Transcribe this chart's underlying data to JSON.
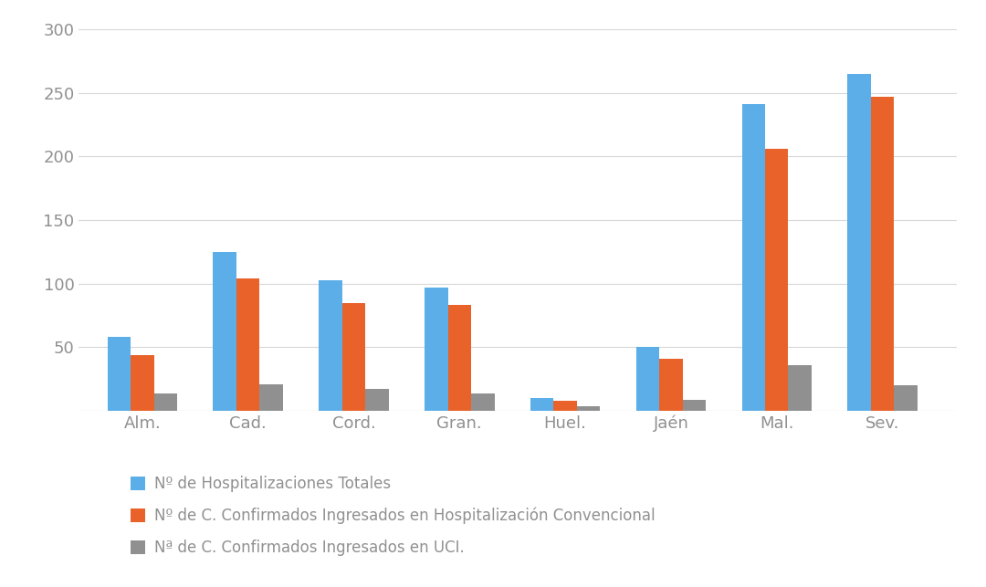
{
  "categories": [
    "Alm.",
    "Cad.",
    "Cord.",
    "Gran.",
    "Huel.",
    "Jaén",
    "Mal.",
    "Sev."
  ],
  "series": {
    "hospitalizaciones_totales": [
      58,
      125,
      103,
      97,
      10,
      50,
      241,
      265
    ],
    "confirmados_convencional": [
      44,
      104,
      85,
      83,
      8,
      41,
      206,
      247
    ],
    "confirmados_uci": [
      14,
      21,
      17,
      14,
      4,
      9,
      36,
      20
    ]
  },
  "colors": {
    "hospitalizaciones_totales": "#5BAEE8",
    "confirmados_convencional": "#E8622A",
    "confirmados_uci": "#909090"
  },
  "legend_labels": [
    "Nº de Hospitalizaciones Totales",
    "Nº de C. Confirmados Ingresados en Hospitalización Convencional",
    "Nª de C. Confirmados Ingresados en UCI."
  ],
  "ylim": [
    0,
    300
  ],
  "yticks": [
    0,
    50,
    100,
    150,
    200,
    250,
    300
  ],
  "background_color": "#ffffff",
  "bar_width": 0.22,
  "grid_color": "#d8d8d8",
  "text_color": "#909090",
  "label_fontsize": 13,
  "legend_fontsize": 12
}
